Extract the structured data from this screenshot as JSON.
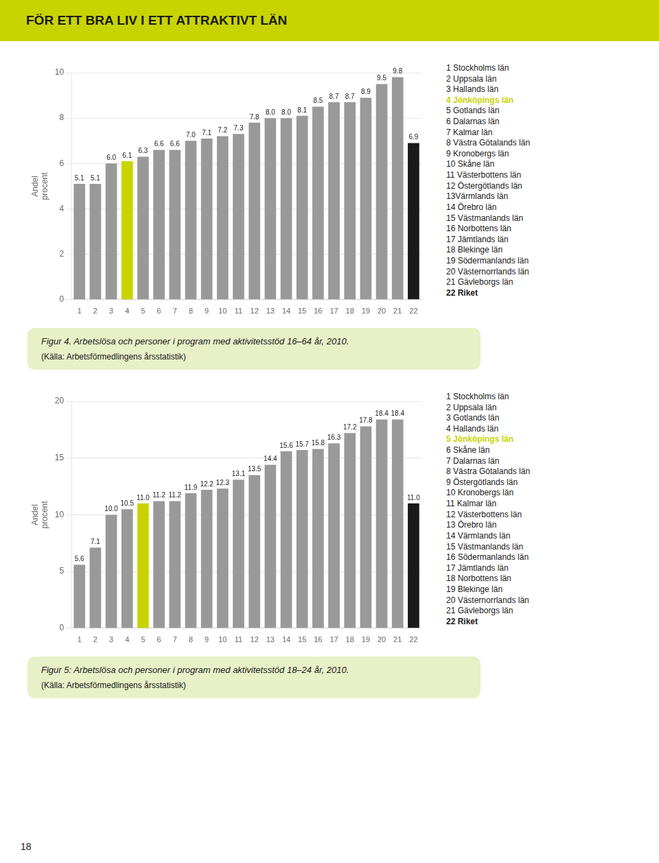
{
  "title": "FÖR ETT BRA LIV I ETT ATTRAKTIVT LÄN",
  "page_number": "18",
  "chart_data": [
    {
      "type": "bar",
      "ylabel": [
        "Andel",
        "procent"
      ],
      "categories": [
        "1",
        "2",
        "3",
        "4",
        "5",
        "6",
        "7",
        "8",
        "9",
        "10",
        "11",
        "12",
        "13",
        "14",
        "15",
        "16",
        "17",
        "18",
        "19",
        "20",
        "21",
        "22"
      ],
      "values": [
        5.1,
        5.1,
        6.0,
        6.1,
        6.3,
        6.6,
        6.6,
        7.0,
        7.1,
        7.2,
        7.3,
        7.8,
        8.0,
        8.0,
        8.1,
        8.5,
        8.7,
        8.7,
        8.9,
        9.5,
        9.8,
        6.9
      ],
      "value_labels": [
        "5.1",
        "5.1",
        "6.0",
        "6.1",
        "6.3",
        "6.6",
        "6.6",
        "7.0",
        "7.1",
        "7.2",
        "7.3",
        "7.8",
        "8.0",
        "8.0",
        "8.1",
        "8.5",
        "8.7",
        "8.7",
        "8.9",
        "9.5",
        "9.8",
        "6.9"
      ],
      "colors": [
        "#999999",
        "#999999",
        "#999999",
        "#c8d400",
        "#999999",
        "#999999",
        "#999999",
        "#999999",
        "#999999",
        "#999999",
        "#999999",
        "#999999",
        "#999999",
        "#999999",
        "#999999",
        "#999999",
        "#999999",
        "#999999",
        "#999999",
        "#999999",
        "#999999",
        "#1a1a1a"
      ],
      "ylim": [
        0,
        10
      ],
      "yticks": [
        0,
        2,
        4,
        6,
        8,
        10
      ],
      "grid": true,
      "data_labels": true,
      "annotations": [
        "1 Stockholms län",
        "2 Uppsala län",
        "3 Hallands län",
        {
          "text": "4 Jönköpings län",
          "color": "#c8d400"
        },
        "5 Gotlands län",
        "6 Dalarnas län",
        "7 Kalmar län",
        "8 Västra Götalands län",
        "9 Kronobergs län",
        "10 Skåne län",
        "11 Västerbottens län",
        "12 Östergötlands län",
        "13Värmlands län",
        "14 Örebro län",
        "15 Västmanlands län",
        "16 Norbottens län",
        "17 Jämtlands län",
        "18 Blekinge län",
        "19 Södermanlands län",
        "20 Västernorrlands län",
        "21 Gävleborgs län",
        "22 Riket"
      ],
      "caption": [
        "Figur 4. Arbetslösa och personer i program med aktivitetsstöd 16–64 år, 2010.",
        "(Källa: Arbetsförmedlingens årsstatistik)"
      ]
    },
    {
      "type": "bar",
      "ylabel": [
        "Andel",
        "procent"
      ],
      "categories": [
        "1",
        "2",
        "3",
        "4",
        "5",
        "6",
        "7",
        "8",
        "9",
        "10",
        "11",
        "12",
        "13",
        "14",
        "15",
        "16",
        "17",
        "18",
        "19",
        "20",
        "21",
        "22"
      ],
      "values": [
        5.6,
        7.1,
        10.0,
        10.5,
        11.0,
        11.2,
        11.2,
        11.9,
        12.2,
        12.3,
        13.1,
        13.5,
        14.4,
        15.6,
        15.7,
        15.8,
        16.3,
        17.2,
        17.8,
        18.4,
        18.4,
        11.0
      ],
      "value_labels": [
        "5.6",
        "7.1",
        "10.0",
        "10.5",
        "11.0",
        "11.2",
        "11.2",
        "11.9",
        "12.2",
        "12.3",
        "13.1",
        "13.5",
        "14.4",
        "15.6",
        "15.7",
        "15.8",
        "16.3",
        "17.2",
        "17.8",
        "18.4",
        "18.4",
        "11.0"
      ],
      "colors": [
        "#999999",
        "#999999",
        "#999999",
        "#999999",
        "#c8d400",
        "#999999",
        "#999999",
        "#999999",
        "#999999",
        "#999999",
        "#999999",
        "#999999",
        "#999999",
        "#999999",
        "#999999",
        "#999999",
        "#999999",
        "#999999",
        "#999999",
        "#999999",
        "#999999",
        "#1a1a1a"
      ],
      "ylim": [
        0,
        20
      ],
      "yticks": [
        0,
        5,
        10,
        15,
        20
      ],
      "grid": true,
      "data_labels": true,
      "annotations": [
        "1 Stockholms län",
        "2 Uppsala län",
        "3 Gotlands län",
        "4 Hallands län",
        {
          "text": "5 Jönköpings län",
          "color": "#c8d400"
        },
        "6 Skåne län",
        "7 Dalarnas län",
        "8 Västra Götalands län",
        "9 Östergötlands län",
        "10 Kronobergs län",
        "11 Kalmar län",
        "12 Västerbottens län",
        "13 Örebro län",
        "14 Värmlands län",
        "15 Västmanlands län",
        "16 Södermanlands län",
        "17 Jämtlands län",
        "18 Norbottens län",
        "19 Blekinge län",
        "20 Västernorrlands län",
        "21 Gävleborgs län",
        "22 Riket"
      ],
      "caption": [
        "Figur 5: Arbetslösa och personer i program med aktivitetsstöd 18–24 år, 2010.",
        "(Källa: Arbetsförmedlingens årsstatistik)"
      ]
    }
  ]
}
